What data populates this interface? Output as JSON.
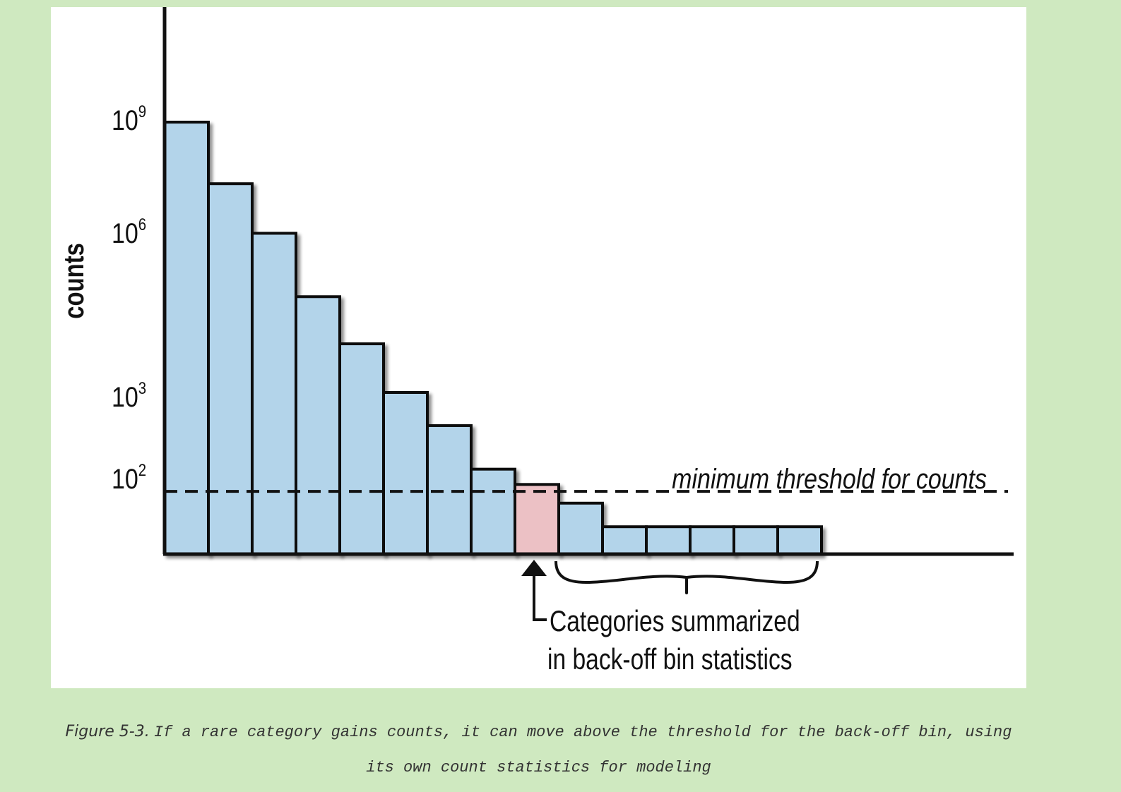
{
  "chart_data": {
    "type": "bar",
    "ylabel": "counts",
    "yscale": "log",
    "yticks": [
      {
        "base": "10",
        "exp": "9"
      },
      {
        "base": "10",
        "exp": "6"
      },
      {
        "base": "10",
        "exp": "3"
      },
      {
        "base": "10",
        "exp": "2"
      }
    ],
    "values": [
      1000000000,
      20000000,
      900000,
      60000,
      8000,
      1000,
      400,
      120,
      60,
      20,
      5,
      5,
      5,
      5,
      5
    ],
    "threshold": 40,
    "threshold_label": "minimum threshold for counts",
    "highlighted_bar_index": 8,
    "annotation": {
      "line1": "Categories summarized",
      "line2": "in back-off bin statistics"
    },
    "colors": {
      "bar": "#b3d4ea",
      "highlight": "#ecc1c5",
      "stroke": "#111111",
      "panel": "#ffffff",
      "page": "#cfe9c0"
    }
  },
  "caption": {
    "label": "Figure 5-3.",
    "text": "If a rare category gains counts, it can move above the threshold for the back-off bin, using its own count statistics for modeling"
  }
}
